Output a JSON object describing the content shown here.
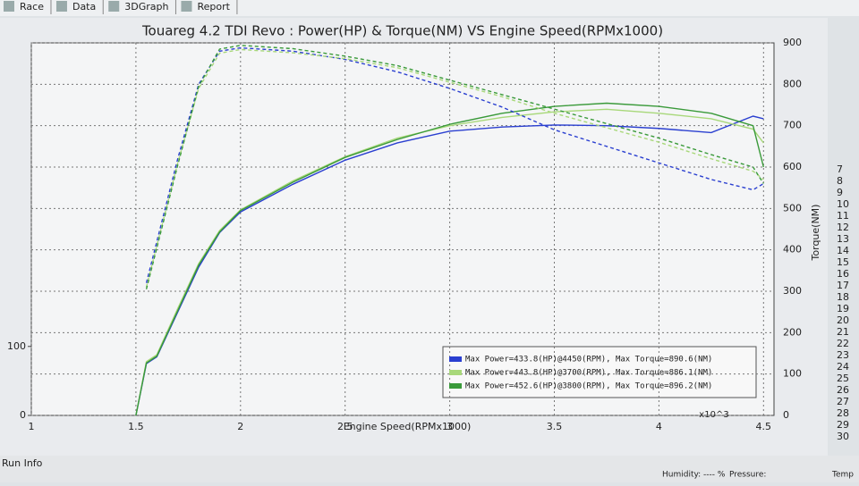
{
  "ui": {
    "tabs": [
      "Race",
      "Data",
      "3DGraph",
      "Report"
    ],
    "status": "Run Info",
    "humidity": "Humidity: ---- %",
    "pressure": "Pressure:",
    "temp": "Temp",
    "side_rows": [
      "7",
      "8",
      "9",
      "10",
      "11",
      "12",
      "13",
      "14",
      "15",
      "16",
      "17",
      "18",
      "19",
      "20",
      "21",
      "22",
      "23",
      "24",
      "25",
      "26",
      "27",
      "28",
      "29",
      "30"
    ]
  },
  "chart_data": {
    "type": "line",
    "title": "Touareg 4.2 TDI Revo  : Power(HP) & Torque(NM) VS Engine Speed(RPMx1000)",
    "x_label": "Engine Speed(RPMx1000)",
    "x_multiplier": "x10^3",
    "y2_label": "Torque(NM)",
    "x": [
      1.5,
      1.55,
      1.6,
      1.7,
      1.8,
      1.9,
      2.0,
      2.25,
      2.5,
      2.75,
      3.0,
      3.25,
      3.5,
      3.75,
      4.0,
      4.25,
      4.45,
      4.5
    ],
    "xlim": [
      1,
      4.55
    ],
    "xticks": [
      1,
      1.5,
      2,
      2.5,
      3,
      3.5,
      4,
      4.5
    ],
    "ylim": [
      0,
      540
    ],
    "yticks": [
      0,
      100
    ],
    "y2lim": [
      0,
      900
    ],
    "y2ticks": [
      0,
      100,
      200,
      300,
      400,
      500,
      600,
      700,
      800,
      900
    ],
    "grid": true,
    "legend": "lower right",
    "series": [
      {
        "name": "Max Power=433.8(HP)@4450(RPM), Max Torque=890.6(NM)",
        "color": "#2a3fd0",
        "values": [
          0,
          75,
          85,
          150,
          215,
          265,
          295,
          335,
          370,
          395,
          412,
          418,
          421,
          420,
          416,
          410,
          433.8,
          430
        ]
      },
      {
        "name": "Max Power=443.8(HP)@3700(RPM), Max Torque=886.1(NM)",
        "color": "#a8d87a",
        "values": [
          0,
          78,
          88,
          155,
          220,
          268,
          298,
          340,
          375,
          402,
          420,
          432,
          440,
          443.8,
          438,
          430,
          415,
          395
        ]
      },
      {
        "name": "Max Power=452.6(HP)@3800(RPM), Max Torque=896.2(NM)",
        "color": "#3a9a3a",
        "values": [
          0,
          76,
          86,
          152,
          218,
          266,
          297,
          338,
          374,
          400,
          422,
          438,
          448,
          452.6,
          448,
          438,
          420,
          360
        ]
      },
      {
        "color": "#2a3fd0",
        "dashed": true,
        "axis": "y2",
        "values": [
          null,
          320,
          420,
          620,
          800,
          880,
          888,
          880,
          860,
          830,
          790,
          745,
          690,
          650,
          610,
          570,
          545,
          560
        ]
      },
      {
        "color": "#a8d87a",
        "dashed": true,
        "axis": "y2",
        "values": [
          null,
          310,
          410,
          610,
          790,
          875,
          884,
          876,
          862,
          840,
          805,
          770,
          730,
          695,
          660,
          620,
          590,
          570
        ]
      },
      {
        "color": "#3a9a3a",
        "dashed": true,
        "axis": "y2",
        "values": [
          null,
          305,
          405,
          605,
          795,
          885,
          894,
          886,
          868,
          845,
          810,
          775,
          740,
          705,
          670,
          630,
          600,
          560
        ]
      }
    ]
  }
}
